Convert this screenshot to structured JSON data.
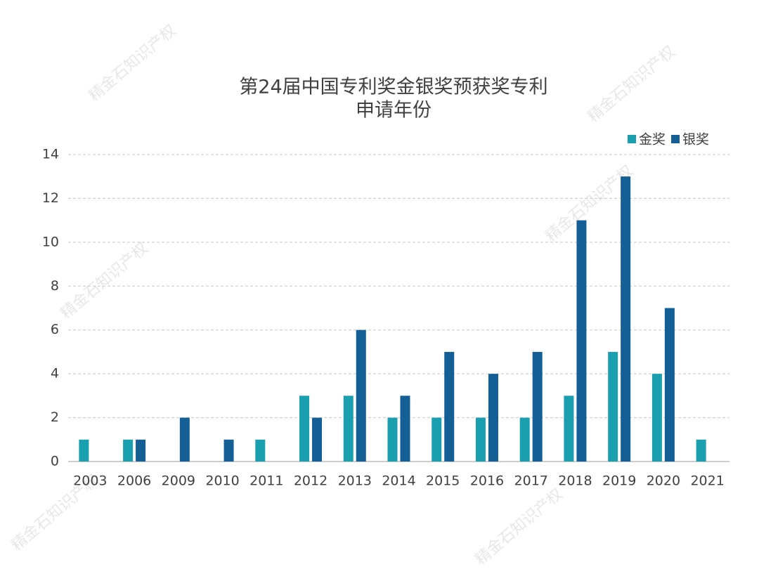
{
  "chart_data": {
    "type": "bar",
    "title": [
      "第24届中国专利奖金银奖预获奖专利",
      "申请年份"
    ],
    "watermark": "精金石知识产权",
    "categories": [
      "2003",
      "2006",
      "2009",
      "2010",
      "2011",
      "2012",
      "2013",
      "2014",
      "2015",
      "2016",
      "2017",
      "2018",
      "2019",
      "2020",
      "2021"
    ],
    "series": [
      {
        "name": "金奖",
        "color": "#1a9fb0",
        "values": [
          1,
          1,
          0,
          0,
          1,
          3,
          3,
          2,
          2,
          2,
          2,
          3,
          5,
          4,
          1
        ]
      },
      {
        "name": "银奖",
        "color": "#135f96",
        "values": [
          0,
          1,
          2,
          1,
          0,
          2,
          6,
          3,
          5,
          4,
          5,
          11,
          13,
          7,
          0
        ]
      }
    ],
    "ylim": [
      0,
      14
    ],
    "yticks": [
      0,
      2,
      4,
      6,
      8,
      10,
      12,
      14
    ],
    "grid": true,
    "legend": "top-right"
  }
}
